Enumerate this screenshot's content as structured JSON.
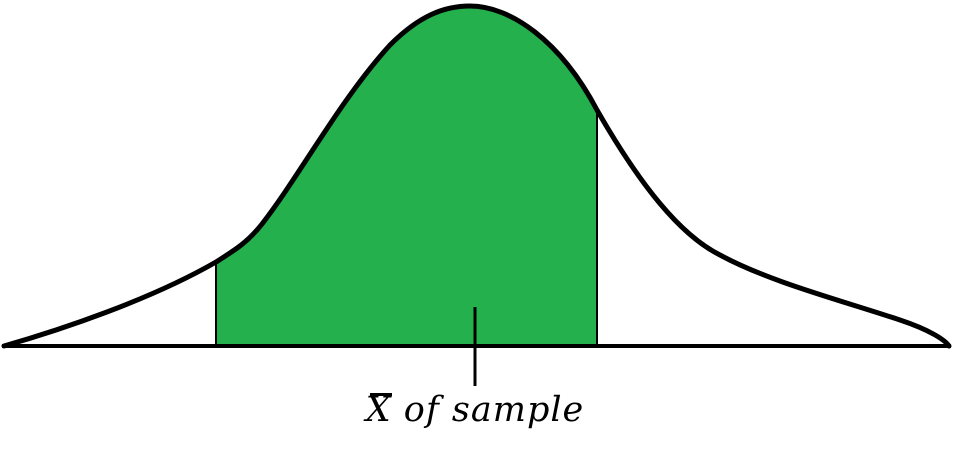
{
  "diagram": {
    "label": {
      "symbol": "X",
      "text": "of sample"
    },
    "colors": {
      "shaded_region": "#23b04d",
      "curve": "#000000",
      "background": "#ffffff"
    }
  }
}
